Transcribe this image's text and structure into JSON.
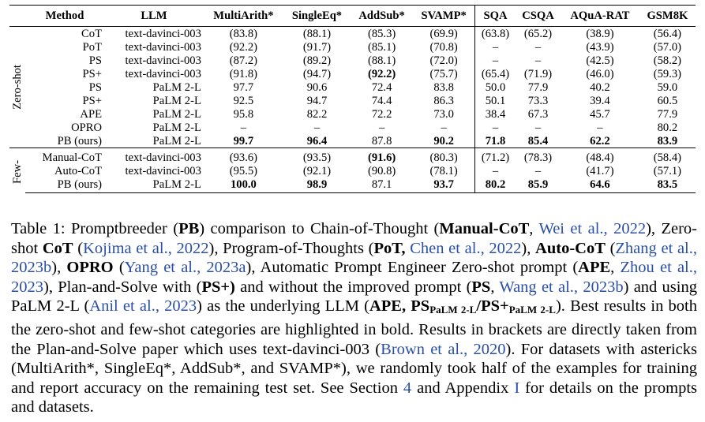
{
  "table": {
    "headers": [
      "Method",
      "LLM",
      "MultiArith*",
      "SingleEq*",
      "AddSub*",
      "SVAMP*",
      "SQA",
      "CSQA",
      "AQuA-RAT",
      "GSM8K"
    ],
    "groups": [
      {
        "label": "Zero-shot",
        "rows": [
          {
            "method": "CoT",
            "llm": "text-davinci-003",
            "values": [
              "(83.8)",
              "(88.1)",
              "(85.3)",
              "(69.9)",
              "(63.8)",
              "(65.2)",
              "(38.9)",
              "(56.4)"
            ],
            "bold": [
              false,
              false,
              false,
              false,
              false,
              false,
              false,
              false
            ]
          },
          {
            "method": "PoT",
            "llm": "text-davinci-003",
            "values": [
              "(92.2)",
              "(91.7)",
              "(85.1)",
              "(70.8)",
              "–",
              "–",
              "(43.9)",
              "(57.0)"
            ],
            "bold": [
              false,
              false,
              false,
              false,
              false,
              false,
              false,
              false
            ]
          },
          {
            "method": "PS",
            "llm": "text-davinci-003",
            "values": [
              "(87.2)",
              "(89.2)",
              "(88.1)",
              "(72.0)",
              "–",
              "–",
              "(42.5)",
              "(58.2)"
            ],
            "bold": [
              false,
              false,
              false,
              false,
              false,
              false,
              false,
              false
            ]
          },
          {
            "method": "PS+",
            "llm": "text-davinci-003",
            "values": [
              "(91.8)",
              "(94.7)",
              "(92.2)",
              "(75.7)",
              "(65.4)",
              "(71.9)",
              "(46.0)",
              "(59.3)"
            ],
            "bold": [
              false,
              false,
              true,
              false,
              false,
              false,
              false,
              false
            ]
          },
          {
            "method": "PS",
            "llm": "PaLM 2-L",
            "values": [
              "97.7",
              "90.6",
              "72.4",
              "83.8",
              "50.0",
              "77.9",
              "40.2",
              "59.0"
            ],
            "bold": [
              false,
              false,
              false,
              false,
              false,
              false,
              false,
              false
            ]
          },
          {
            "method": "PS+",
            "llm": "PaLM 2-L",
            "values": [
              "92.5",
              "94.7",
              "74.4",
              "86.3",
              "50.1",
              "73.3",
              "39.4",
              "60.5"
            ],
            "bold": [
              false,
              false,
              false,
              false,
              false,
              false,
              false,
              false
            ]
          },
          {
            "method": "APE",
            "llm": "PaLM 2-L",
            "values": [
              "95.8",
              "82.2",
              "72.2",
              "73.0",
              "38.4",
              "67.3",
              "45.7",
              "77.9"
            ],
            "bold": [
              false,
              false,
              false,
              false,
              false,
              false,
              false,
              false
            ]
          },
          {
            "method": "OPRO",
            "llm": "PaLM 2-L",
            "values": [
              "–",
              "–",
              "–",
              "–",
              "–",
              "–",
              "–",
              "80.2"
            ],
            "bold": [
              false,
              false,
              false,
              false,
              false,
              false,
              false,
              false
            ]
          },
          {
            "method": "PB (ours)",
            "llm": "PaLM 2-L",
            "values": [
              "99.7",
              "96.4",
              "87.8",
              "90.2",
              "71.8",
              "85.4",
              "62.2",
              "83.9"
            ],
            "bold": [
              true,
              true,
              false,
              true,
              true,
              true,
              true,
              true
            ]
          }
        ]
      },
      {
        "label": "Few-",
        "rows": [
          {
            "method": "Manual-CoT",
            "llm": "text-davinci-003",
            "values": [
              "(93.6)",
              "(93.5)",
              "(91.6)",
              "(80.3)",
              "(71.2)",
              "(78.3)",
              "(48.4)",
              "(58.4)"
            ],
            "bold": [
              false,
              false,
              true,
              false,
              false,
              false,
              false,
              false
            ]
          },
          {
            "method": "Auto-CoT",
            "llm": "text-davinci-003",
            "values": [
              "(95.5)",
              "(92.1)",
              "(90.8)",
              "(78.1)",
              "–",
              "–",
              "(41.7)",
              "(57.1)"
            ],
            "bold": [
              false,
              false,
              false,
              false,
              false,
              false,
              false,
              false
            ]
          },
          {
            "method": "PB (ours)",
            "llm": "PaLM 2-L",
            "values": [
              "100.0",
              "98.9",
              "87.1",
              "93.7",
              "80.2",
              "85.9",
              "64.6",
              "83.5"
            ],
            "bold": [
              true,
              true,
              false,
              true,
              true,
              true,
              true,
              true
            ]
          }
        ]
      }
    ]
  },
  "caption": {
    "t01": "Table 1: Promptbreeder (",
    "t02": "PB",
    "t03": ") comparison to Chain-of-Thought (",
    "t04": "Manual-CoT",
    "t05": ", ",
    "t06": "Wei et al., 2022",
    "t07": "), Zero-shot ",
    "t08": "CoT",
    "t09": " (",
    "t10": "Kojima et al., 2022",
    "t11": "), Program-of-Thoughts (",
    "t12": "PoT,",
    "t13": " ",
    "t14": "Chen et al., 2022",
    "t15": "), ",
    "t16": "Auto-CoT",
    "t17": " (",
    "t18": "Zhang et al., 2023b",
    "t19": "), ",
    "t20": "OPRO",
    "t21": " (",
    "t22": "Yang et al., 2023a",
    "t23": "), Automatic Prompt Engineer Zero-shot prompt (",
    "t24": "APE",
    "t25": ", ",
    "t26": "Zhou et al., 2023",
    "t27": "), Plan-and-Solve with (",
    "t28": "PS+)",
    "t29": " and without the improved prompt (",
    "t30": "PS",
    "t31": ", ",
    "t32": "Wang et al., 2023b",
    "t33": ") and using PaLM 2-L (",
    "t34": "Anil et al., 2023",
    "t35": ") as the underlying LLM (",
    "t36": "APE, PS",
    "t37": "PaLM 2-L",
    "t38": "/PS+",
    "t39": "PaLM 2-L",
    "t40": "). Best results in both the zero-shot and few-shot categories are highlighted in bold. Results in brackets are directly taken from the Plan-and-Solve paper which uses text-davinci-003 (",
    "t41": "Brown et al., 2020",
    "t42": "). For datasets with astericks (MultiArith*, SingleEq*, AddSub*, and SVAMP*), we randomly took half of the examples for training and report accuracy on the remaining test set. See Section ",
    "t43": "4",
    "t44": " and Appendix ",
    "t45": "I",
    "t46": " for details on the prompts and datasets."
  }
}
